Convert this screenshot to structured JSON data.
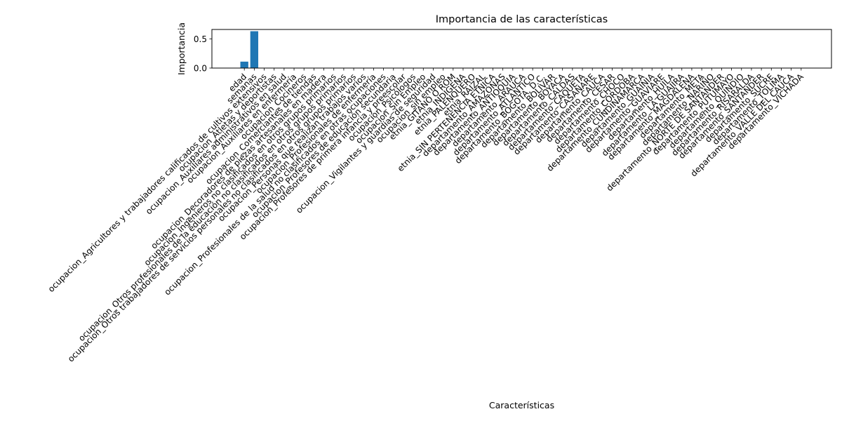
{
  "chart_data": {
    "type": "bar",
    "title": "Importancia de las características",
    "xlabel": "Características",
    "ylabel": "Importancia",
    "ylim": [
      0,
      0.66
    ],
    "yticks": [
      0.0,
      0.5
    ],
    "ytick_labels": [
      "0.0",
      "0.5"
    ],
    "bar_color": "#1f77b4",
    "grid": false,
    "categories": [
      "edad",
      "semanas",
      "ocupacion_Agricultores y trabajadores calificados de cultivos extensivos",
      "ocupacion_Atletas y deportistas",
      "ocupacion_Auxiliares administrativos en salud",
      "ocupacion_Auxiliares en enfermería",
      "ocupacion_Cocineros",
      "ocupacion_Comerciantes de tiendas",
      "ocupacion_Decoradores de piezas artesanales en madera",
      "ocupacion_Ingenieros no clasificados en otros grupos primarios",
      "ocupacion_Otros profesionales de la educación no clasificados en otros grupos primarios",
      "ocupacion_Otros trabajadores de servicios personales no clasificados en otros grupos primarios",
      "ocupacion_Personas que realizan trabajos varios",
      "ocupacion_Profesionales de enfermería",
      "ocupacion_Profesionales de la salud no clasificados en otras ocupaciones",
      "ocupacion_Profesores de educación secundaria",
      "ocupacion_Profesores de primera infancia y preescolar",
      "ocupacion_Psicólogos",
      "ocupacion_Sin Empleo",
      "ocupacion_Vigilantes y guardias de seguridad",
      "ocupacion_sin empleo",
      "etnia_GITANO O ROM",
      "etnia_INDIGENA",
      "etnia_PALENQUERO",
      "etnia_RAIZAL",
      "etnia_SIN PERTENENCIA ETNICA",
      "departamento_AMAZONAS",
      "departamento_ANTIOQUIA",
      "departamento_ARAUCA",
      "departamento_ATLANTICO",
      "departamento_BOGOTA, D.C.",
      "departamento_BOLIVAR",
      "departamento_BOYACA",
      "departamento_CALDAS",
      "departamento_CAQUETA",
      "departamento_CASANARE",
      "departamento_CAUCA",
      "departamento_CESAR",
      "departamento_CHOCO",
      "departamento_CORDOBA",
      "departamento_CUNDINAMARCA",
      "departamento_GUAINIA",
      "departamento_GUAVIARE",
      "departamento_HUILA",
      "departamento_LA GUAJIRA",
      "departamento_MAGDALENA",
      "departamento_META",
      "departamento_NARIÑO",
      "departamento_NORTE DE SANTANDER",
      "departamento_PUTUMAYO",
      "departamento_QUINDIO",
      "departamento_RISARALDA",
      "departamento_SANTANDER",
      "departamento_SUCRE",
      "departamento_TOLIMA",
      "departamento_VALLE DEL CAUCA",
      "departamento_VICHADA"
    ],
    "values": [
      0.11,
      0.63,
      0,
      0,
      0,
      0,
      0,
      0,
      0,
      0,
      0,
      0,
      0,
      0,
      0,
      0,
      0,
      0,
      0.004,
      0,
      0.004,
      0.004,
      0,
      0.004,
      0.003,
      0,
      0,
      0.003,
      0,
      0.003,
      0,
      0,
      0.004,
      0.004,
      0,
      0,
      0.003,
      0,
      0.003,
      0.003,
      0.003,
      0,
      0.003,
      0,
      0.003,
      0.003,
      0,
      0.003,
      0,
      0,
      0.003,
      0,
      0.003,
      0,
      0,
      0.003,
      0.003
    ]
  }
}
